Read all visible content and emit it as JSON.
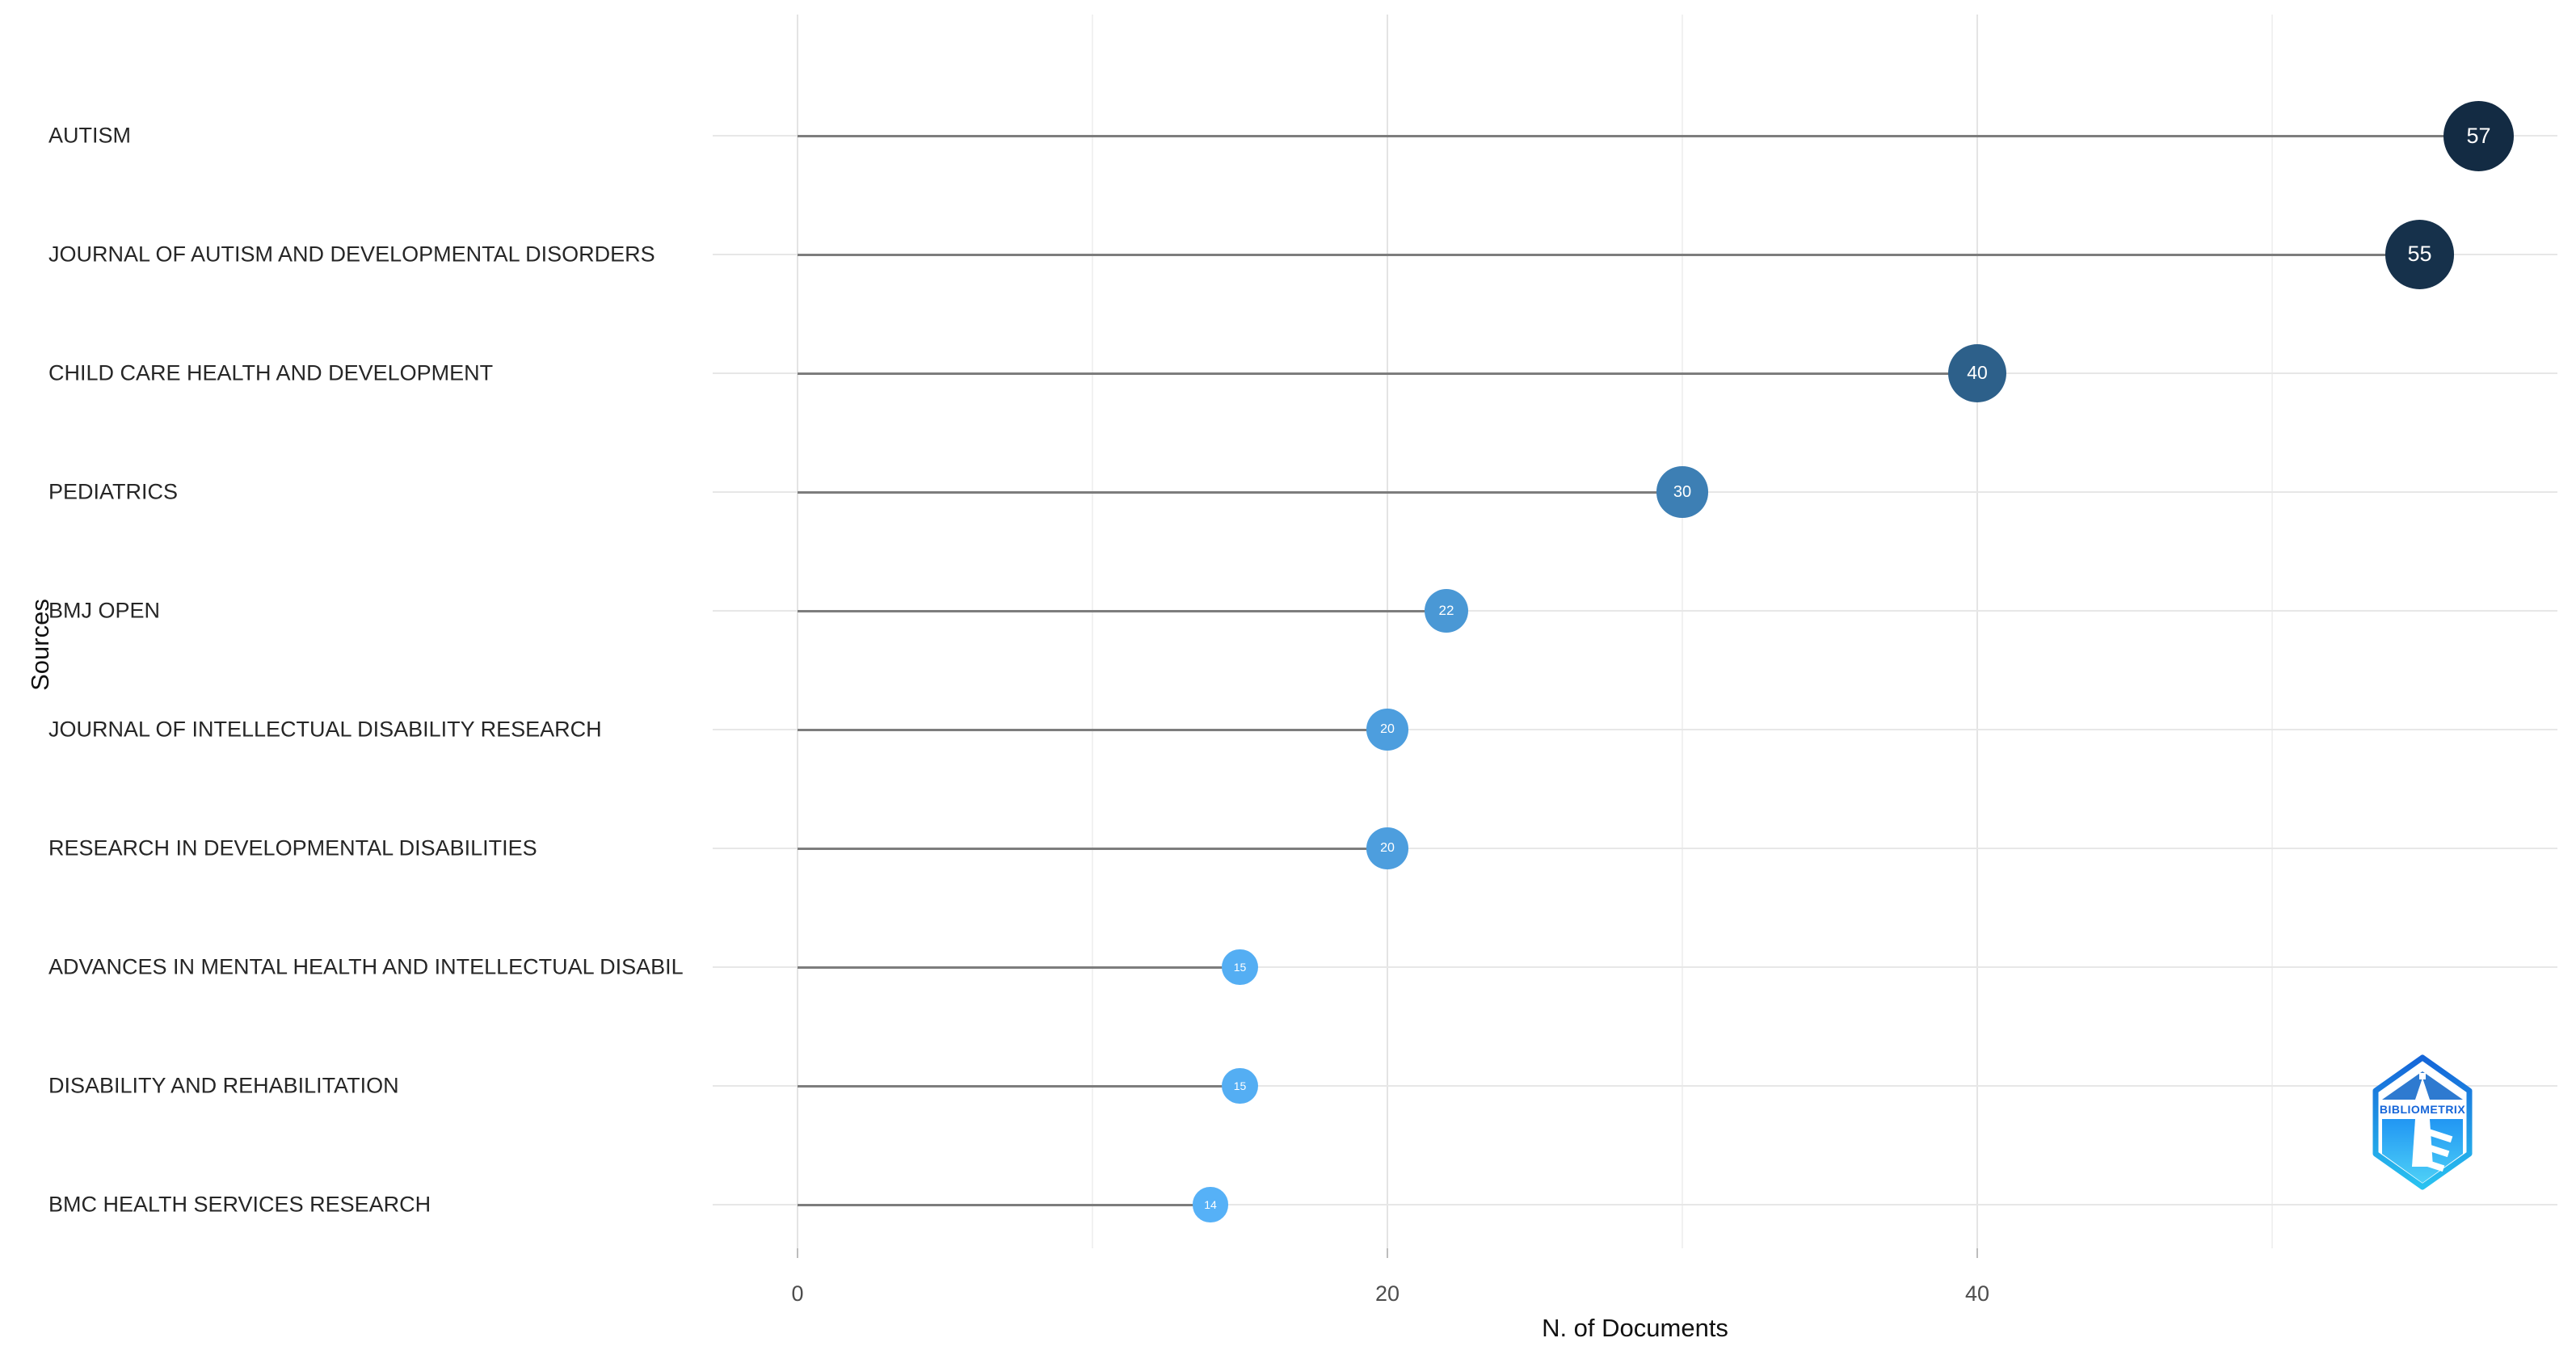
{
  "chart_data": {
    "type": "scatter",
    "subtype": "lollipop",
    "title": "",
    "xlabel": "N. of Documents",
    "ylabel": "Sources",
    "x_ticks": [
      0,
      20,
      40
    ],
    "x_minor_ticks": [
      10,
      30,
      50
    ],
    "xlim": [
      -3,
      60
    ],
    "grid": true,
    "legend": "none",
    "categories": [
      "AUTISM",
      "JOURNAL OF AUTISM AND DEVELOPMENTAL DISORDERS",
      "CHILD CARE HEALTH AND DEVELOPMENT",
      "PEDIATRICS",
      "BMJ OPEN",
      "JOURNAL OF INTELLECTUAL DISABILITY RESEARCH",
      "RESEARCH IN DEVELOPMENTAL DISABILITIES",
      "ADVANCES IN MENTAL HEALTH AND INTELLECTUAL DISABIL",
      "DISABILITY AND REHABILITATION",
      "BMC HEALTH SERVICES RESEARCH"
    ],
    "values": [
      57,
      55,
      40,
      30,
      22,
      20,
      20,
      15,
      15,
      14
    ],
    "point_colors": [
      "#132B43",
      "#16314B",
      "#2D608A",
      "#3D7FB4",
      "#4A98D5",
      "#4D9EDE",
      "#4D9EDE",
      "#54AEF3",
      "#54AEF3",
      "#56B1F7"
    ],
    "color_scale": {
      "low_value_color": "#56B1F7",
      "high_value_color": "#132B43"
    }
  },
  "watermark": {
    "label": "BIBLIOMETRIX"
  },
  "colors": {
    "stem": "#7d7d7d",
    "grid_major": "#e7e7e7",
    "grid_minor": "#f1f1f1",
    "tick_label": "#4d4d4d",
    "axis_title": "#111111",
    "point_label": "#ffffff",
    "logo_blue": "#1565d8",
    "logo_cyan": "#29c2f0"
  }
}
